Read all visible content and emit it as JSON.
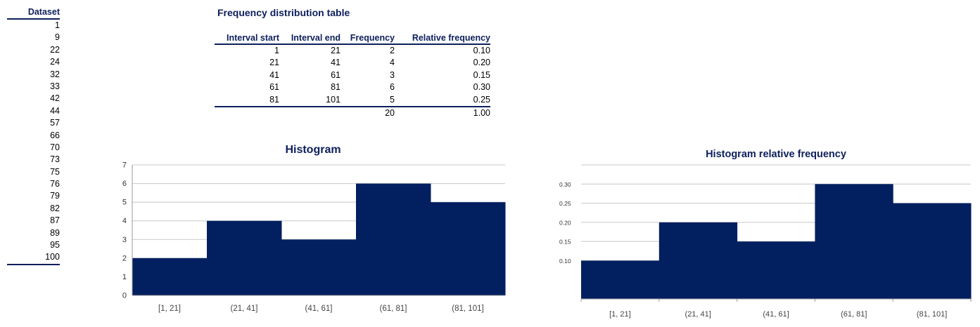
{
  "dataset": {
    "header": "Dataset",
    "values": [
      "1",
      "9",
      "22",
      "24",
      "32",
      "33",
      "42",
      "44",
      "57",
      "66",
      "70",
      "73",
      "75",
      "76",
      "79",
      "82",
      "87",
      "89",
      "95",
      "100"
    ]
  },
  "freq_table": {
    "title": "Frequency distribution table",
    "headers": [
      "Interval start",
      "Interval end",
      "Frequency",
      "Relative frequency"
    ],
    "rows": [
      [
        "1",
        "21",
        "2",
        "0.10"
      ],
      [
        "21",
        "41",
        "4",
        "0.20"
      ],
      [
        "41",
        "61",
        "3",
        "0.15"
      ],
      [
        "61",
        "81",
        "6",
        "0.30"
      ],
      [
        "81",
        "101",
        "5",
        "0.25"
      ]
    ],
    "totals": [
      "",
      "",
      "20",
      "1.00"
    ]
  },
  "colors": {
    "bar": "#022060",
    "title": "#0d1f5c",
    "grid": "#c8c8c8"
  },
  "chart_data": [
    {
      "type": "bar",
      "title": "Histogram",
      "categories": [
        "[1, 21]",
        "(21, 41]",
        "(41, 61]",
        "(61, 81]",
        "(81, 101]"
      ],
      "values": [
        2,
        4,
        3,
        6,
        5
      ],
      "ylim": [
        0,
        7
      ],
      "yticks": [
        "0",
        "1",
        "2",
        "3",
        "4",
        "5",
        "6",
        "7"
      ],
      "grid": true
    },
    {
      "type": "bar",
      "title": "Histogram relative frequency",
      "categories": [
        "[1, 21]",
        "(21, 41]",
        "(41, 61]",
        "(61, 81]",
        "(81, 101]"
      ],
      "values": [
        0.1,
        0.2,
        0.15,
        0.3,
        0.25
      ],
      "ylim": [
        0,
        0.35
      ],
      "yticks": [
        "0.10",
        "0.15",
        "0.20",
        "0.25",
        "0.30"
      ],
      "ytick_values": [
        0.1,
        0.15,
        0.2,
        0.25,
        0.3
      ],
      "grid": true
    }
  ]
}
